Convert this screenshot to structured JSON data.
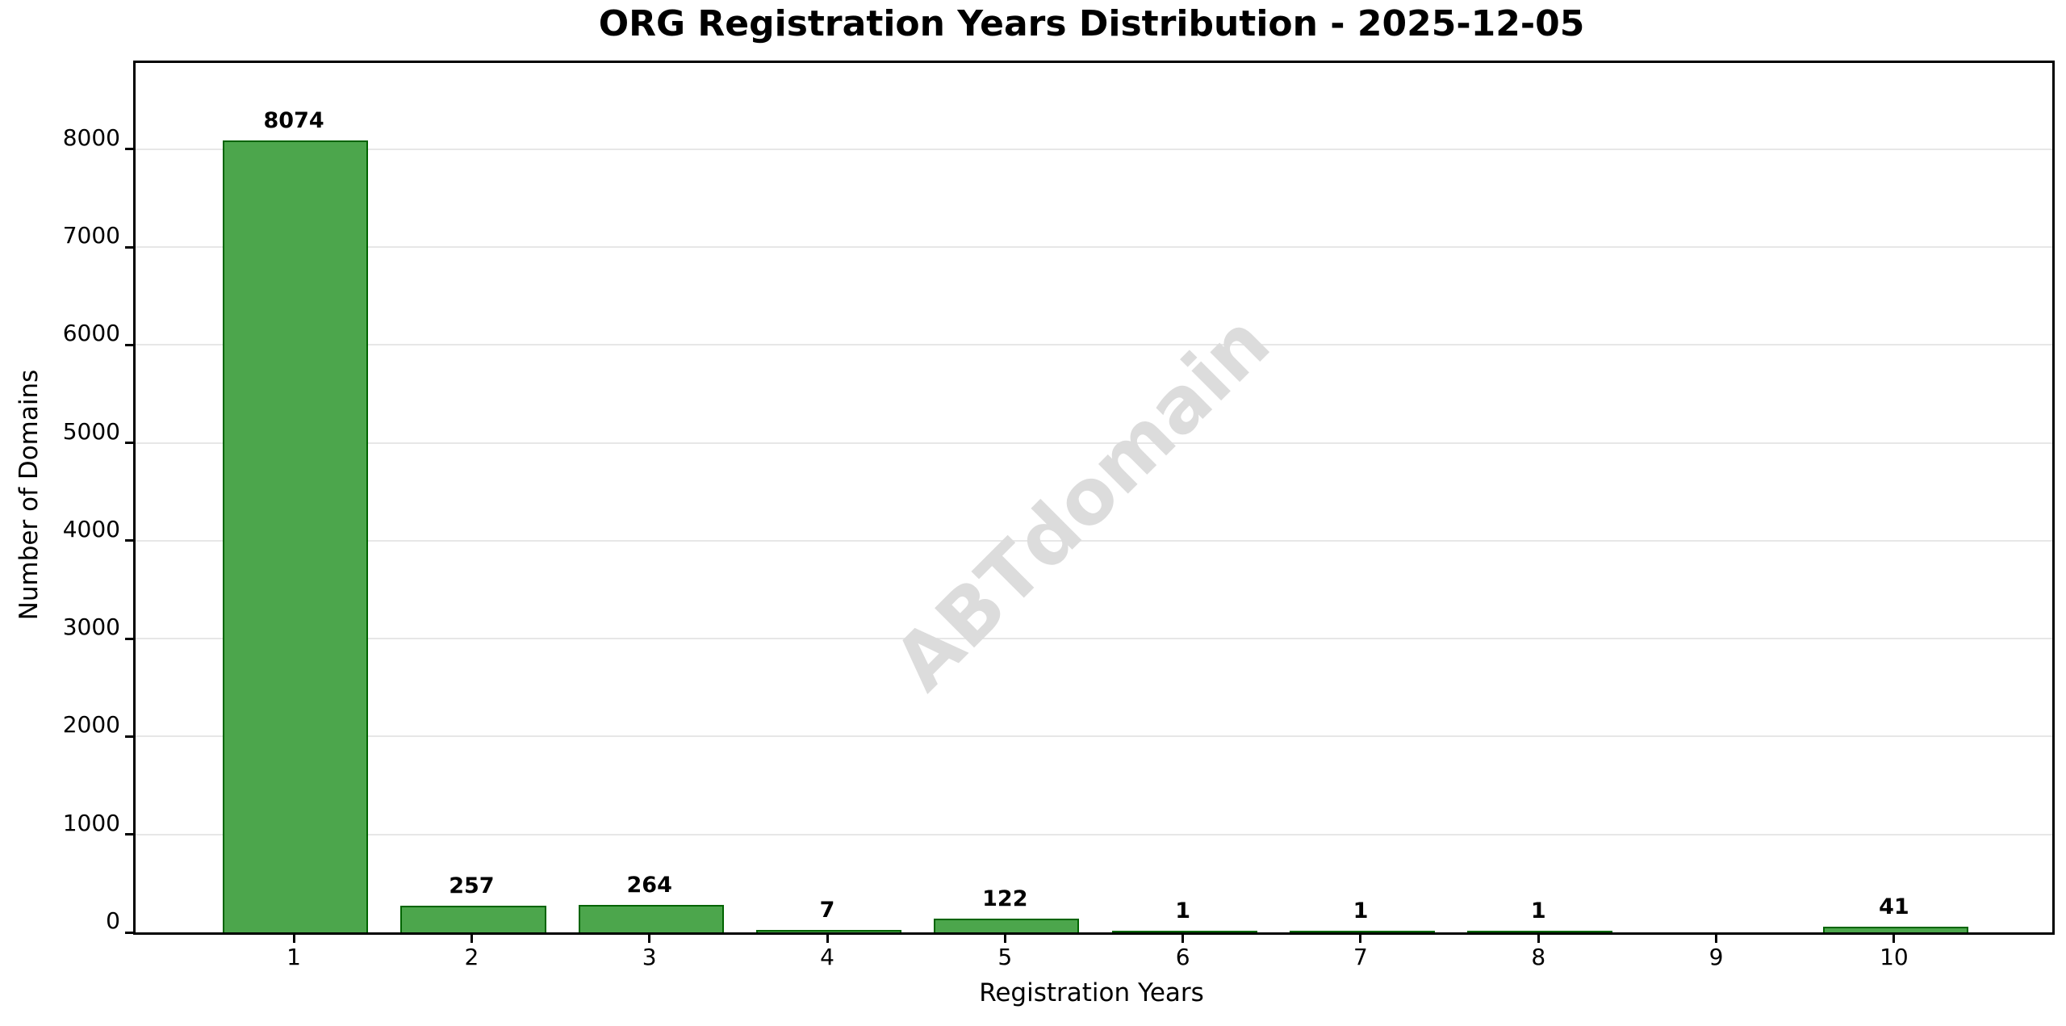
{
  "chart_data": {
    "type": "bar",
    "title": "ORG Registration Years Distribution - 2025-12-05",
    "xlabel": "Registration Years",
    "ylabel": "Number of Domains",
    "categories": [
      "1",
      "2",
      "3",
      "4",
      "5",
      "6",
      "7",
      "8",
      "9",
      "10"
    ],
    "values": [
      8074,
      257,
      264,
      7,
      122,
      1,
      1,
      1,
      0,
      41
    ],
    "bar_labels": [
      "8074",
      "257",
      "264",
      "7",
      "122",
      "1",
      "1",
      "1",
      "",
      "41"
    ],
    "yticks": [
      0,
      1000,
      2000,
      3000,
      4000,
      5000,
      6000,
      7000,
      8000
    ],
    "ylim": [
      0,
      8880
    ],
    "xlim": [
      0.11,
      10.89
    ],
    "bar_width_units": 0.8,
    "bar_color": "#4ca64c",
    "bar_edge_color": "#006400",
    "grid": "horizontal",
    "grid_color": "#e7e7e7",
    "legend": "none",
    "watermark": {
      "text": "ABTdomain",
      "color": "#dcdcdc",
      "rotation_deg": -45
    }
  }
}
